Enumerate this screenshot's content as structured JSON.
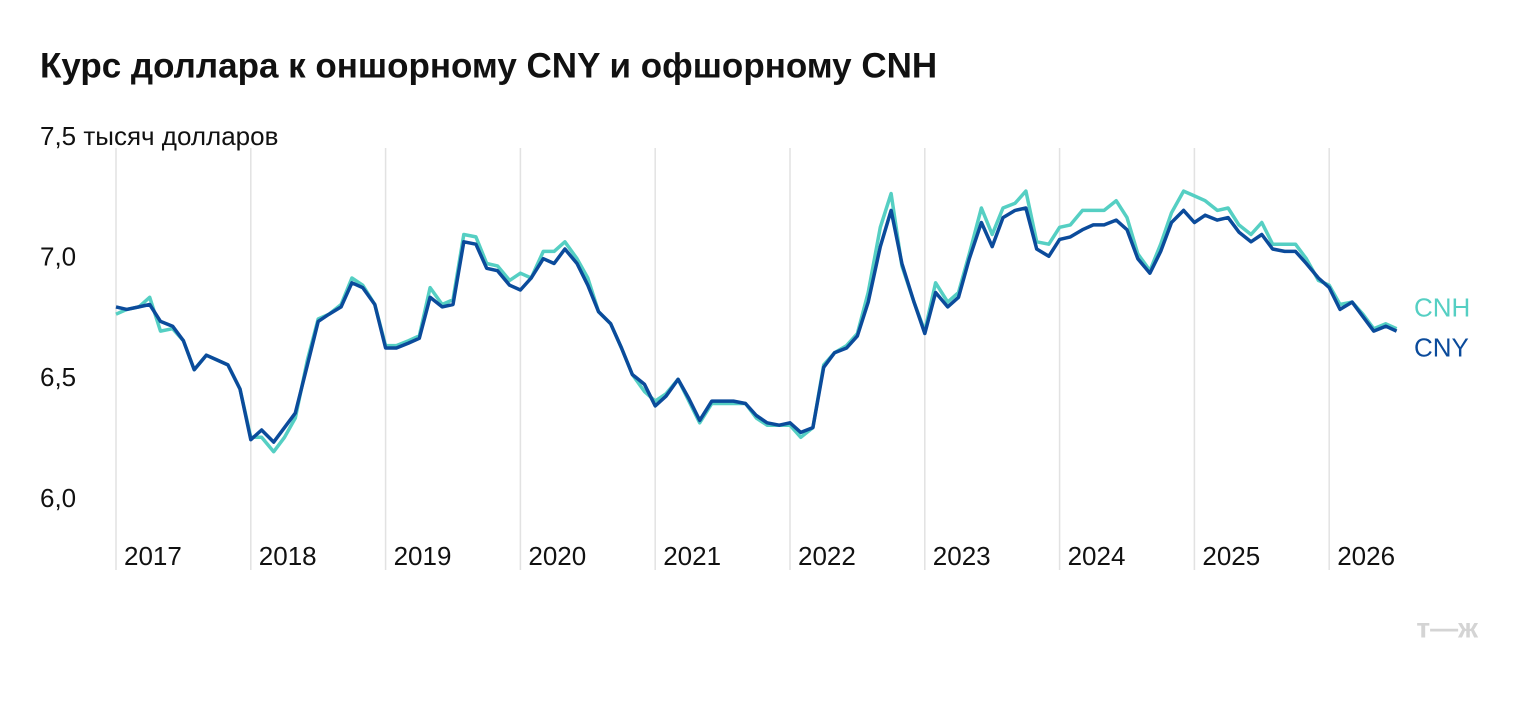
{
  "chart_data": {
    "type": "line",
    "title": "Курс доллара к оншорному CNY и офшорному CNH",
    "logo": "т—ж",
    "xlim": [
      2017,
      2027
    ],
    "xticks": [
      2017,
      2018,
      2019,
      2020,
      2021,
      2022,
      2023,
      2024,
      2025,
      2026
    ],
    "ylim": [
      5.71,
      7.5
    ],
    "yticks": [
      {
        "value": 7.5,
        "label": "7,5 тысяч долларов"
      },
      {
        "value": 7.0,
        "label": "7,0"
      },
      {
        "value": 6.5,
        "label": "6,5"
      },
      {
        "value": 6.0,
        "label": "6,0"
      }
    ],
    "grid": "x",
    "x": [
      2017.0,
      2017.08,
      2017.17,
      2017.25,
      2017.33,
      2017.42,
      2017.5,
      2017.58,
      2017.67,
      2017.75,
      2017.83,
      2017.92,
      2018.0,
      2018.08,
      2018.17,
      2018.25,
      2018.33,
      2018.42,
      2018.5,
      2018.58,
      2018.67,
      2018.75,
      2018.83,
      2018.92,
      2019.0,
      2019.08,
      2019.17,
      2019.25,
      2019.33,
      2019.42,
      2019.5,
      2019.58,
      2019.67,
      2019.75,
      2019.83,
      2019.92,
      2020.0,
      2020.08,
      2020.17,
      2020.25,
      2020.33,
      2020.42,
      2020.5,
      2020.58,
      2020.67,
      2020.75,
      2020.83,
      2020.92,
      2021.0,
      2021.08,
      2021.17,
      2021.25,
      2021.33,
      2021.42,
      2021.5,
      2021.58,
      2021.67,
      2021.75,
      2021.83,
      2021.92,
      2022.0,
      2022.08,
      2022.17,
      2022.25,
      2022.33,
      2022.42,
      2022.5,
      2022.58,
      2022.67,
      2022.75,
      2022.83,
      2022.92,
      2023.0,
      2023.08,
      2023.17,
      2023.25,
      2023.33,
      2023.42,
      2023.5,
      2023.58,
      2023.67,
      2023.75,
      2023.83,
      2023.92,
      2024.0,
      2024.08,
      2024.17,
      2024.25,
      2024.33,
      2024.42,
      2024.5,
      2024.58,
      2024.67,
      2024.75,
      2024.83,
      2024.92,
      2025.0,
      2025.08,
      2025.17,
      2025.25,
      2025.33,
      2025.42,
      2025.5,
      2025.58,
      2025.67,
      2025.75,
      2025.83,
      2025.92,
      2026.0,
      2026.08,
      2026.17,
      2026.25,
      2026.33,
      2026.42,
      2026.5
    ],
    "series": [
      {
        "name": "CNH",
        "color": "#55cfc3",
        "values": [
          6.77,
          6.79,
          6.8,
          6.84,
          6.7,
          6.71,
          6.66,
          6.54,
          6.6,
          6.58,
          6.56,
          6.46,
          6.26,
          6.26,
          6.2,
          6.26,
          6.34,
          6.58,
          6.75,
          6.77,
          6.81,
          6.92,
          6.89,
          6.81,
          6.64,
          6.64,
          6.66,
          6.68,
          6.88,
          6.81,
          6.83,
          7.1,
          7.09,
          6.98,
          6.97,
          6.91,
          6.94,
          6.92,
          7.03,
          7.03,
          7.07,
          7.0,
          6.92,
          6.78,
          6.73,
          6.63,
          6.52,
          6.45,
          6.41,
          6.44,
          6.5,
          6.41,
          6.32,
          6.4,
          6.4,
          6.4,
          6.4,
          6.34,
          6.31,
          6.31,
          6.31,
          6.26,
          6.3,
          6.56,
          6.61,
          6.64,
          6.69,
          6.86,
          7.13,
          7.27,
          6.97,
          6.82,
          6.7,
          6.9,
          6.82,
          6.86,
          7.02,
          7.21,
          7.1,
          7.21,
          7.23,
          7.28,
          7.07,
          7.06,
          7.13,
          7.14,
          7.2,
          7.2,
          7.2,
          7.24,
          7.17,
          7.02,
          6.95,
          7.06,
          7.19,
          7.28,
          7.26,
          7.24,
          7.2,
          7.21,
          7.14,
          7.1,
          7.15,
          7.06,
          7.06,
          7.06,
          7.0,
          6.91,
          6.89,
          6.81,
          6.82,
          6.77,
          6.71,
          6.73,
          6.71
        ]
      },
      {
        "name": "CNY",
        "color": "#0b4b9b",
        "values": [
          6.8,
          6.79,
          6.8,
          6.81,
          6.74,
          6.72,
          6.66,
          6.54,
          6.6,
          6.58,
          6.56,
          6.46,
          6.25,
          6.29,
          6.24,
          6.3,
          6.36,
          6.56,
          6.74,
          6.77,
          6.8,
          6.9,
          6.88,
          6.81,
          6.63,
          6.63,
          6.65,
          6.67,
          6.84,
          6.8,
          6.81,
          7.07,
          7.06,
          6.96,
          6.95,
          6.89,
          6.87,
          6.92,
          7.0,
          6.98,
          7.04,
          6.98,
          6.89,
          6.78,
          6.73,
          6.63,
          6.52,
          6.48,
          6.39,
          6.43,
          6.5,
          6.42,
          6.33,
          6.41,
          6.41,
          6.41,
          6.4,
          6.35,
          6.32,
          6.31,
          6.32,
          6.28,
          6.3,
          6.55,
          6.61,
          6.63,
          6.68,
          6.82,
          7.05,
          7.2,
          6.98,
          6.82,
          6.69,
          6.86,
          6.8,
          6.84,
          7.0,
          7.15,
          7.05,
          7.17,
          7.2,
          7.21,
          7.04,
          7.01,
          7.08,
          7.09,
          7.12,
          7.14,
          7.14,
          7.16,
          7.12,
          7.0,
          6.94,
          7.03,
          7.15,
          7.2,
          7.15,
          7.18,
          7.16,
          7.17,
          7.11,
          7.07,
          7.1,
          7.04,
          7.03,
          7.03,
          6.98,
          6.92,
          6.88,
          6.79,
          6.82,
          6.76,
          6.7,
          6.72,
          6.7
        ]
      }
    ]
  }
}
